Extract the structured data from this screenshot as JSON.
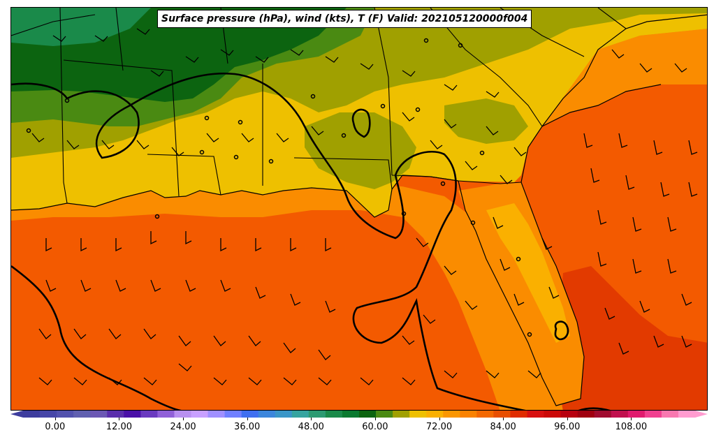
{
  "map": {
    "title": "Surface pressure (hPa), wind (kts), T (F) Valid: 202105120000f004",
    "colors": {
      "gulf_water": "#f35a00",
      "gulf_warm_core": "#e23a00",
      "coast_orange": "#fa8c00",
      "land_yellow": "#eec000",
      "land_olive": "#a0a000",
      "land_green": "#4a8a12",
      "land_dark_green": "#0c6410",
      "line_color": "#000000"
    }
  },
  "colorbar": {
    "ticks": [
      "0.00",
      "12.00",
      "24.00",
      "36.00",
      "48.00",
      "60.00",
      "72.00",
      "84.00",
      "96.00",
      "108.00"
    ],
    "range": [
      -6,
      120
    ],
    "extend": "both",
    "colors": [
      "#3d3d9e",
      "#4646a8",
      "#5252ae",
      "#6060b0",
      "#6b58b4",
      "#5a2eac",
      "#4a10a8",
      "#6a3ac0",
      "#9060d8",
      "#b890f0",
      "#c8a0ff",
      "#a090ff",
      "#7080ff",
      "#3f6ff0",
      "#3c86dc",
      "#3a96c8",
      "#36a4a0",
      "#2c9a72",
      "#1a8a4a",
      "#0a7a30",
      "#0c6410",
      "#4a8a12",
      "#a0a000",
      "#eec000",
      "#fab000",
      "#fa9600",
      "#fa8200",
      "#f36800",
      "#e84e00",
      "#e02c00",
      "#d81010",
      "#cc0808",
      "#b80010",
      "#a00010",
      "#a00c30",
      "#c0104e",
      "#e01a6e",
      "#f04090",
      "#f878b0",
      "#ff9cd0"
    ]
  }
}
